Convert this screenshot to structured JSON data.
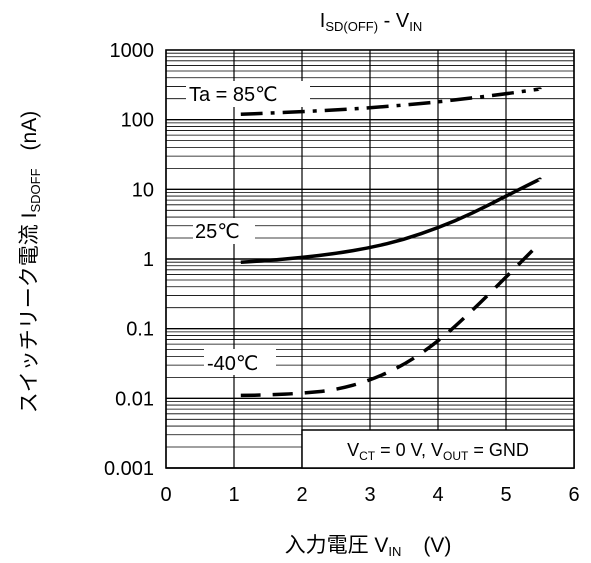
{
  "chart_data": {
    "type": "line",
    "title": "I",
    "title_sub": "SD(OFF)",
    "title_rest": " - V",
    "title_sub2": "IN",
    "xlabel": "入力電圧  V",
    "xlabel_sub": "IN",
    "xlabel_unit": "(V)",
    "ylabel": "スイッチリーク電流  I",
    "ylabel_sub": "SDOFF",
    "ylabel_unit": "(nA)",
    "x_ticks": [
      "0",
      "1",
      "2",
      "3",
      "4",
      "5",
      "6"
    ],
    "y_ticks": [
      "0.001",
      "0.01",
      "0.1",
      "1",
      "10",
      "100",
      "1000"
    ],
    "xlim": [
      0,
      6
    ],
    "ylim": [
      0.001,
      1000
    ],
    "y_scale": "log",
    "grid": true,
    "series": [
      {
        "name": "Ta = 85℃",
        "style": "dash-dot",
        "x": [
          1.1,
          1.5,
          2.0,
          2.5,
          3.0,
          3.5,
          4.0,
          4.5,
          5.0,
          5.5
        ],
        "y": [
          120,
          124,
          130,
          138,
          148,
          162,
          180,
          205,
          235,
          275
        ]
      },
      {
        "name": "25℃",
        "style": "solid",
        "x": [
          1.1,
          1.5,
          2.0,
          2.5,
          3.0,
          3.5,
          4.0,
          4.5,
          5.0,
          5.5
        ],
        "y": [
          0.9,
          0.95,
          1.05,
          1.2,
          1.45,
          1.9,
          2.8,
          4.5,
          8.0,
          14.0
        ]
      },
      {
        "name": "-40℃",
        "style": "dashed",
        "x": [
          1.1,
          1.5,
          2.0,
          2.5,
          3.0,
          3.5,
          4.0,
          4.5,
          5.0,
          5.5
        ],
        "y": [
          0.011,
          0.0112,
          0.0118,
          0.0132,
          0.018,
          0.03,
          0.065,
          0.18,
          0.55,
          1.7
        ]
      }
    ],
    "annotations": {
      "cond_v": "V",
      "cond_ct": "CT",
      "cond_mid": " = 0 V, V",
      "cond_out": "OUT",
      "cond_end": " = GND"
    }
  }
}
